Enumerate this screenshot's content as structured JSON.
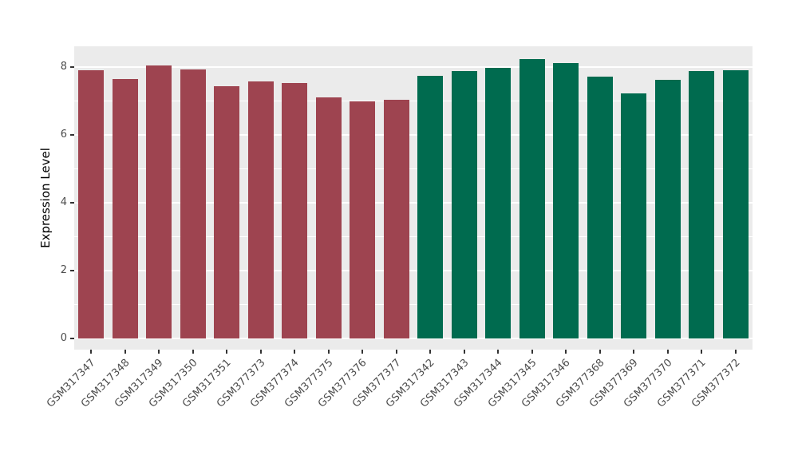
{
  "figure": {
    "background": "#FFFFFF",
    "panel_background": "#EBEBEB",
    "gridline_color": "#FFFFFF",
    "tick_mark_color": "#333333",
    "tick_label_color": "#4D4D4D",
    "axis_title_color": "#000000",
    "group_colors": {
      "left_group": "#9E4450",
      "right_group": "#006B4F"
    }
  },
  "chart_data": {
    "type": "bar",
    "title": "",
    "xlabel": "",
    "ylabel": "Expression Level",
    "ylim": [
      0,
      8.6
    ],
    "yticks": [
      0,
      2,
      4,
      6,
      8
    ],
    "minor_yticks": [
      1,
      3,
      5,
      7
    ],
    "grid": true,
    "legend_position": "none",
    "categories": [
      "GSM317347",
      "GSM317348",
      "GSM317349",
      "GSM317350",
      "GSM317351",
      "GSM377373",
      "GSM377374",
      "GSM377375",
      "GSM377376",
      "GSM377377",
      "GSM317342",
      "GSM317343",
      "GSM317344",
      "GSM317345",
      "GSM317346",
      "GSM377368",
      "GSM377369",
      "GSM377370",
      "GSM377371",
      "GSM377372"
    ],
    "values": [
      7.9,
      7.64,
      8.04,
      7.92,
      7.42,
      7.57,
      7.51,
      7.1,
      6.97,
      7.02,
      7.73,
      7.86,
      7.97,
      8.22,
      8.1,
      7.7,
      7.22,
      7.62,
      7.86,
      7.89
    ],
    "bar_colors": [
      "#9E4450",
      "#9E4450",
      "#9E4450",
      "#9E4450",
      "#9E4450",
      "#9E4450",
      "#9E4450",
      "#9E4450",
      "#9E4450",
      "#9E4450",
      "#006B4F",
      "#006B4F",
      "#006B4F",
      "#006B4F",
      "#006B4F",
      "#006B4F",
      "#006B4F",
      "#006B4F",
      "#006B4F",
      "#006B4F"
    ]
  }
}
